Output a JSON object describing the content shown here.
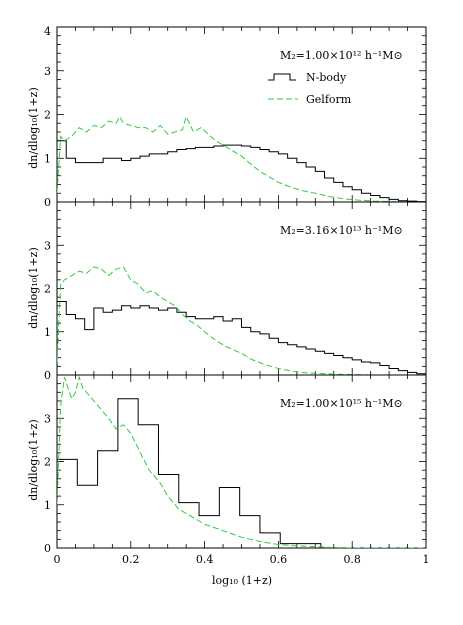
{
  "chart_data": {
    "type": "line",
    "xlabel": "log₁₀ (1+z)",
    "ylabel": "dn/dlog₁₀(1+z)",
    "xlim": [
      0,
      1
    ],
    "x_ticks": [
      "0",
      "0.2",
      "0.4",
      "0.6",
      "0.8",
      "1"
    ],
    "legend": {
      "placement": "top-right",
      "entries": [
        "N-body",
        "Gelform"
      ]
    },
    "colors": {
      "nbody": "#000000",
      "galform": "#2ecc40"
    },
    "panels": [
      {
        "annotation": "M₂=1.00×10¹² h⁻¹M⊙",
        "ylim": [
          0,
          4
        ],
        "y_ticks": [
          "0",
          "1",
          "2",
          "3",
          "4"
        ],
        "show_legend": true,
        "series": [
          {
            "name": "N-body",
            "style": "step",
            "bin_width": 0.025,
            "values": [
              1.4,
              1.0,
              0.9,
              0.9,
              0.9,
              1.0,
              1.0,
              0.95,
              1.0,
              1.05,
              1.1,
              1.1,
              1.15,
              1.2,
              1.22,
              1.25,
              1.25,
              1.28,
              1.3,
              1.3,
              1.28,
              1.25,
              1.2,
              1.15,
              1.1,
              1.0,
              0.9,
              0.8,
              0.7,
              0.55,
              0.45,
              0.35,
              0.28,
              0.2,
              0.15,
              0.1,
              0.06,
              0.03,
              0.02,
              0.01
            ]
          },
          {
            "name": "Gelform",
            "style": "dashed",
            "x": [
              0,
              0.01,
              0.02,
              0.04,
              0.06,
              0.08,
              0.1,
              0.12,
              0.14,
              0.16,
              0.17,
              0.18,
              0.2,
              0.22,
              0.24,
              0.26,
              0.28,
              0.3,
              0.32,
              0.34,
              0.35,
              0.37,
              0.39,
              0.41,
              0.43,
              0.45,
              0.47,
              0.5,
              0.52,
              0.55,
              0.58,
              0.6,
              0.63,
              0.66,
              0.7,
              0.74,
              0.78,
              0.82,
              0.86,
              0.9,
              0.95,
              1.0
            ],
            "y": [
              0.2,
              1.5,
              1.4,
              1.5,
              1.7,
              1.6,
              1.75,
              1.7,
              1.85,
              1.8,
              1.95,
              1.8,
              1.75,
              1.7,
              1.7,
              1.6,
              1.75,
              1.55,
              1.6,
              1.65,
              1.95,
              1.6,
              1.7,
              1.55,
              1.4,
              1.3,
              1.2,
              1.05,
              0.9,
              0.7,
              0.55,
              0.45,
              0.35,
              0.27,
              0.2,
              0.12,
              0.07,
              0.04,
              0.02,
              0.01,
              0.0,
              0.0
            ]
          }
        ]
      },
      {
        "annotation": "M₂=3.16×10¹³ h⁻¹M⊙",
        "ylim": [
          0,
          4
        ],
        "y_ticks": [
          "0",
          "1",
          "2",
          "3"
        ],
        "show_legend": false,
        "series": [
          {
            "name": "N-body",
            "style": "step",
            "bin_width": 0.025,
            "values": [
              1.7,
              1.4,
              1.3,
              1.05,
              1.55,
              1.45,
              1.5,
              1.6,
              1.55,
              1.6,
              1.55,
              1.5,
              1.55,
              1.45,
              1.35,
              1.3,
              1.3,
              1.35,
              1.25,
              1.3,
              1.1,
              1.0,
              0.95,
              0.85,
              0.75,
              0.7,
              0.65,
              0.6,
              0.55,
              0.5,
              0.45,
              0.4,
              0.35,
              0.3,
              0.28,
              0.22,
              0.15,
              0.1,
              0.06,
              0.03
            ]
          },
          {
            "name": "Gelform",
            "style": "dashed",
            "x": [
              0,
              0.01,
              0.02,
              0.04,
              0.06,
              0.08,
              0.1,
              0.12,
              0.14,
              0.16,
              0.18,
              0.2,
              0.22,
              0.24,
              0.26,
              0.28,
              0.3,
              0.32,
              0.34,
              0.36,
              0.38,
              0.4,
              0.43,
              0.46,
              0.5,
              0.53,
              0.56,
              0.6,
              0.63,
              0.66,
              0.7,
              0.75,
              0.8,
              0.85,
              0.9,
              0.95,
              1.0
            ],
            "y": [
              0.3,
              2.1,
              2.2,
              2.3,
              2.4,
              2.35,
              2.5,
              2.45,
              2.3,
              2.45,
              2.5,
              2.2,
              2.1,
              1.9,
              1.95,
              1.8,
              1.7,
              1.6,
              1.4,
              1.25,
              1.15,
              1.0,
              0.8,
              0.65,
              0.5,
              0.35,
              0.25,
              0.15,
              0.1,
              0.06,
              0.04,
              0.02,
              0.01,
              0.0,
              0.0,
              0.0,
              0.0
            ]
          }
        ]
      },
      {
        "annotation": "M₂=1.00×10¹⁵ h⁻¹M⊙",
        "ylim": [
          0,
          4
        ],
        "y_ticks": [
          "0",
          "1",
          "2",
          "3"
        ],
        "show_legend": false,
        "series": [
          {
            "name": "N-body",
            "style": "step",
            "bin_width": 0.055,
            "values": [
              2.05,
              1.45,
              2.25,
              3.45,
              2.85,
              1.7,
              1.05,
              0.75,
              1.4,
              0.75,
              0.35,
              0.1,
              0.1,
              0.0
            ]
          },
          {
            "name": "Gelform",
            "style": "dashed",
            "x": [
              0,
              0.01,
              0.02,
              0.03,
              0.04,
              0.05,
              0.06,
              0.07,
              0.08,
              0.1,
              0.12,
              0.14,
              0.16,
              0.18,
              0.2,
              0.22,
              0.25,
              0.28,
              0.3,
              0.33,
              0.36,
              0.4,
              0.45,
              0.5,
              0.55,
              0.6,
              0.65,
              0.7,
              0.75,
              0.8,
              0.9,
              1.0
            ],
            "y": [
              1.0,
              3.3,
              3.95,
              3.7,
              3.45,
              3.6,
              3.95,
              3.7,
              3.6,
              3.4,
              3.2,
              3.0,
              2.75,
              2.85,
              2.65,
              2.3,
              1.8,
              1.5,
              1.2,
              0.9,
              0.75,
              0.55,
              0.4,
              0.25,
              0.15,
              0.08,
              0.05,
              0.03,
              0.01,
              0.0,
              0.0,
              0.0
            ]
          }
        ]
      }
    ]
  }
}
